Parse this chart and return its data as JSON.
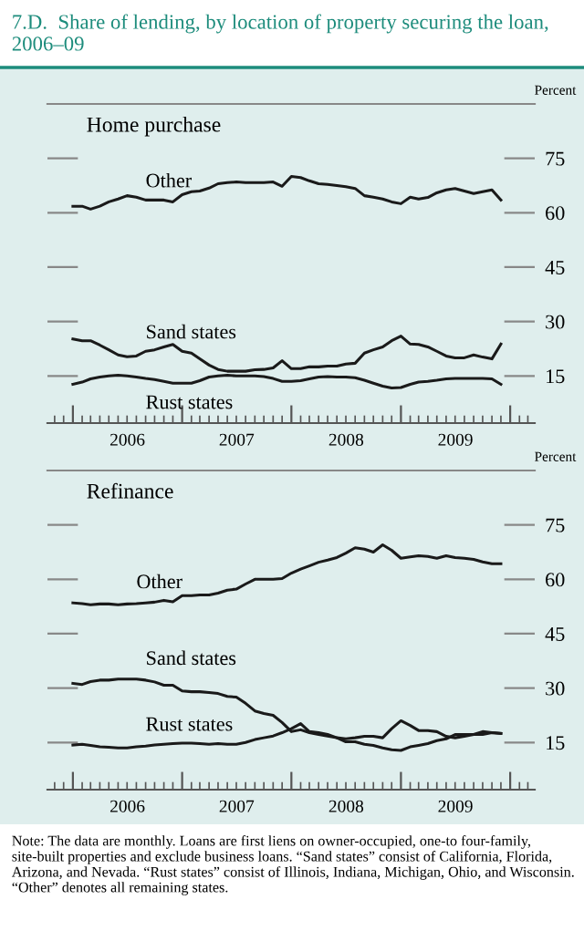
{
  "chart_data": [
    {
      "type": "line",
      "title": "7.D.  Share of lending, by location of property securing the loan, 2006–09",
      "subtitle": "Home purchase",
      "ylabel": "Percent",
      "x": [
        "2006-01",
        "2006-02",
        "2006-03",
        "2006-04",
        "2006-05",
        "2006-06",
        "2006-07",
        "2006-08",
        "2006-09",
        "2006-10",
        "2006-11",
        "2006-12",
        "2007-01",
        "2007-02",
        "2007-03",
        "2007-04",
        "2007-05",
        "2007-06",
        "2007-07",
        "2007-08",
        "2007-09",
        "2007-10",
        "2007-11",
        "2007-12",
        "2008-01",
        "2008-02",
        "2008-03",
        "2008-04",
        "2008-05",
        "2008-06",
        "2008-07",
        "2008-08",
        "2008-09",
        "2008-10",
        "2008-11",
        "2008-12",
        "2009-01",
        "2009-02",
        "2009-03",
        "2009-04",
        "2009-05",
        "2009-06",
        "2009-07",
        "2009-08",
        "2009-09",
        "2009-10",
        "2009-11",
        "2009-12"
      ],
      "series": [
        {
          "name": "Other",
          "color": "#1a1a1a",
          "values": [
            61.8,
            61.8,
            61.0,
            61.8,
            63.0,
            63.8,
            64.7,
            64.3,
            63.5,
            63.5,
            63.5,
            63.0,
            65.0,
            65.8,
            66.0,
            66.8,
            68.0,
            68.3,
            68.5,
            68.3,
            68.3,
            68.3,
            68.5,
            67.3,
            70.0,
            69.7,
            68.8,
            68.0,
            67.8,
            67.5,
            67.2,
            66.7,
            64.7,
            64.3,
            63.8,
            63.0,
            62.5,
            64.3,
            63.8,
            64.2,
            65.5,
            66.3,
            66.7,
            66.0,
            65.3,
            65.8,
            66.3,
            63.5
          ]
        },
        {
          "name": "Sand states",
          "color": "#1a1a1a",
          "values": [
            25.2,
            24.7,
            24.7,
            23.5,
            22.2,
            20.8,
            20.3,
            20.5,
            21.8,
            22.2,
            23.0,
            23.7,
            21.8,
            21.3,
            19.7,
            18.0,
            16.8,
            16.3,
            16.3,
            16.3,
            16.7,
            16.8,
            17.2,
            19.2,
            17.0,
            17.0,
            17.5,
            17.5,
            17.7,
            17.7,
            18.3,
            18.5,
            21.3,
            22.2,
            23.0,
            24.7,
            26.0,
            23.8,
            23.7,
            23.0,
            21.8,
            20.5,
            20.0,
            20.0,
            20.8,
            20.2,
            19.7,
            23.8
          ]
        },
        {
          "name": "Rust states",
          "color": "#1a1a1a",
          "values": [
            12.7,
            13.3,
            14.2,
            14.7,
            15.0,
            15.2,
            15.0,
            14.7,
            14.3,
            14.0,
            13.5,
            13.0,
            13.0,
            13.0,
            13.7,
            14.7,
            15.0,
            15.2,
            15.0,
            15.0,
            15.0,
            14.8,
            14.3,
            13.5,
            13.5,
            13.7,
            14.2,
            14.7,
            14.8,
            14.7,
            14.7,
            14.5,
            13.8,
            13.0,
            12.2,
            11.7,
            11.8,
            12.7,
            13.3,
            13.5,
            13.8,
            14.2,
            14.3,
            14.3,
            14.3,
            14.3,
            14.2,
            12.7
          ]
        }
      ],
      "xlim": [
        "2005-10-08",
        "2010-03-24"
      ],
      "xticks": [
        {
          "value": "2006-01-01",
          "label": null
        },
        {
          "value": "2006-07-02",
          "label": "2006"
        },
        {
          "value": "2007-01-01",
          "label": null
        },
        {
          "value": "2007-07-02",
          "label": "2007"
        },
        {
          "value": "2008-01-01",
          "label": null
        },
        {
          "value": "2008-07-02",
          "label": "2008"
        },
        {
          "value": "2009-01-01",
          "label": null
        },
        {
          "value": "2009-07-02",
          "label": "2009"
        },
        {
          "value": "2010-01-01",
          "label": null
        }
      ],
      "ylim": [
        2,
        90
      ],
      "yticks": [
        15,
        30,
        45,
        60,
        75
      ],
      "grid": false,
      "legend": false,
      "line_style": "solid",
      "marker": "none"
    },
    {
      "type": "line",
      "subtitle": "Refinance",
      "ylabel": "Percent",
      "x": [
        "2006-01",
        "2006-02",
        "2006-03",
        "2006-04",
        "2006-05",
        "2006-06",
        "2006-07",
        "2006-08",
        "2006-09",
        "2006-10",
        "2006-11",
        "2006-12",
        "2007-01",
        "2007-02",
        "2007-03",
        "2007-04",
        "2007-05",
        "2007-06",
        "2007-07",
        "2007-08",
        "2007-09",
        "2007-10",
        "2007-11",
        "2007-12",
        "2008-01",
        "2008-02",
        "2008-03",
        "2008-04",
        "2008-05",
        "2008-06",
        "2008-07",
        "2008-08",
        "2008-09",
        "2008-10",
        "2008-11",
        "2008-12",
        "2009-01",
        "2009-02",
        "2009-03",
        "2009-04",
        "2009-05",
        "2009-06",
        "2009-07",
        "2009-08",
        "2009-09",
        "2009-10",
        "2009-11",
        "2009-12"
      ],
      "series": [
        {
          "name": "Other",
          "color": "#1a1a1a",
          "values": [
            53.5,
            53.3,
            53.0,
            53.2,
            53.2,
            53.0,
            53.2,
            53.3,
            53.5,
            53.7,
            54.2,
            53.8,
            55.5,
            55.5,
            55.7,
            55.7,
            56.2,
            57.0,
            57.3,
            58.7,
            60.0,
            60.0,
            60.0,
            60.2,
            61.7,
            62.8,
            63.7,
            64.7,
            65.3,
            66.0,
            67.2,
            68.7,
            68.3,
            67.5,
            69.5,
            68.0,
            65.8,
            66.2,
            66.5,
            66.3,
            65.8,
            66.5,
            66.0,
            65.8,
            65.5,
            64.8,
            64.3,
            64.3
          ]
        },
        {
          "name": "Sand states",
          "color": "#1a1a1a",
          "values": [
            31.3,
            31.0,
            31.8,
            32.2,
            32.2,
            32.5,
            32.5,
            32.5,
            32.2,
            31.7,
            30.8,
            30.8,
            29.2,
            29.0,
            29.0,
            28.8,
            28.5,
            27.7,
            27.5,
            25.8,
            23.7,
            23.0,
            22.5,
            20.5,
            18.0,
            18.5,
            17.7,
            17.2,
            16.8,
            16.3,
            15.2,
            15.2,
            14.5,
            14.2,
            13.5,
            13.0,
            12.8,
            13.8,
            14.2,
            14.7,
            15.5,
            16.0,
            17.2,
            17.2,
            17.2,
            17.2,
            17.7,
            17.5
          ]
        },
        {
          "name": "Rust states",
          "color": "#1a1a1a",
          "values": [
            14.3,
            14.5,
            14.2,
            13.8,
            13.7,
            13.5,
            13.5,
            13.8,
            14.0,
            14.3,
            14.5,
            14.7,
            14.8,
            14.8,
            14.7,
            14.5,
            14.7,
            14.5,
            14.5,
            15.0,
            15.8,
            16.3,
            16.8,
            17.7,
            18.8,
            20.2,
            18.0,
            17.7,
            17.2,
            16.3,
            16.0,
            16.3,
            16.7,
            16.7,
            16.3,
            18.8,
            21.0,
            19.7,
            18.3,
            18.3,
            18.0,
            16.7,
            16.3,
            16.7,
            17.2,
            18.0,
            17.7,
            17.5
          ]
        }
      ],
      "xlim": [
        "2005-10-08",
        "2010-03-24"
      ],
      "xticks": [
        {
          "value": "2006-01-01",
          "label": null
        },
        {
          "value": "2006-07-02",
          "label": "2006"
        },
        {
          "value": "2007-01-01",
          "label": null
        },
        {
          "value": "2007-07-02",
          "label": "2007"
        },
        {
          "value": "2008-01-01",
          "label": null
        },
        {
          "value": "2008-07-02",
          "label": "2008"
        },
        {
          "value": "2009-01-01",
          "label": null
        },
        {
          "value": "2009-07-02",
          "label": "2009"
        },
        {
          "value": "2010-01-01",
          "label": null
        }
      ],
      "ylim": [
        2,
        90
      ],
      "yticks": [
        15,
        30,
        45,
        60,
        75
      ],
      "grid": false,
      "legend": false,
      "line_style": "solid",
      "marker": "none",
      "annotations": [
        "Note: The data are monthly. Loans are first liens on owner-occupied, one-to four-family, site-built properties and exclude business loans. “Sand states” consist of California, Florida, Arizona, and Nevada. “Rust states” consist of Illinois, Indiana, Michigan, Ohio, and Wisconsin. “Other” denotes all remaining states."
      ]
    }
  ]
}
